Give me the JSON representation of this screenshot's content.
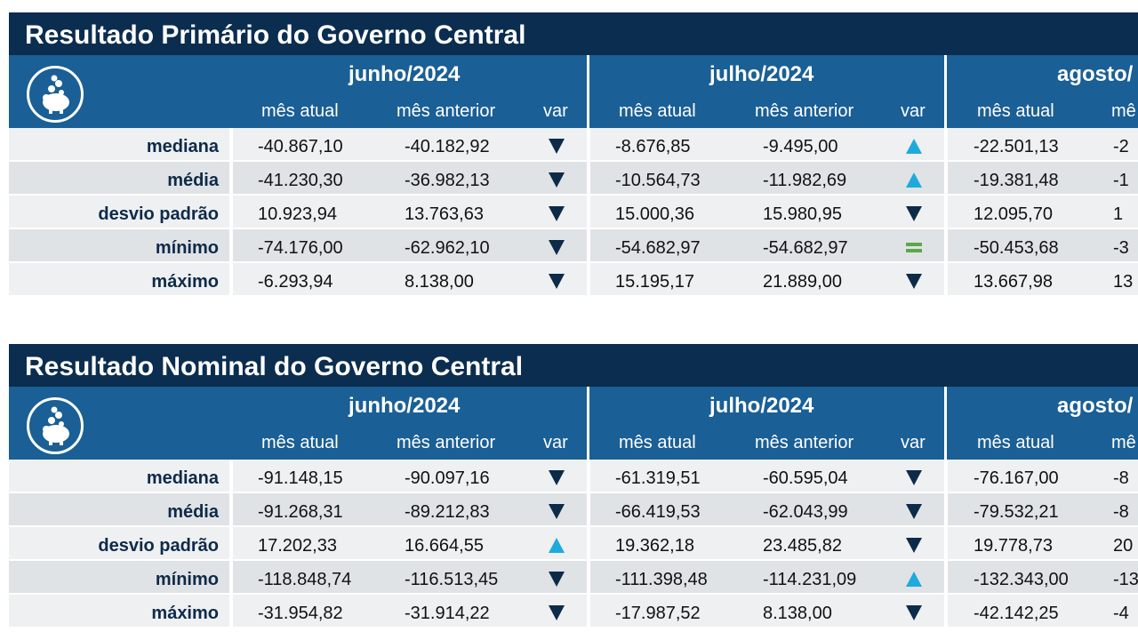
{
  "colors": {
    "title_bg": "#0b2d4f",
    "header_bg": "#1a5f95",
    "down": "#0d2b48",
    "up": "#1eaadc",
    "equal": "#5aa84a"
  },
  "logo_icon": "piggy-bank-icon",
  "var_icons": {
    "down": "triangle-down-icon",
    "up": "triangle-up-icon",
    "equal": "equal-icon"
  },
  "sections": [
    {
      "title": "Resultado Primário do Governo Central",
      "months": [
        "junho/2024",
        "julho/2024",
        "agosto/"
      ],
      "subheaders": [
        "mês atual",
        "mês anterior",
        "var",
        "mês atual",
        "mês anterior",
        "var",
        "mês atual",
        "mê"
      ],
      "rows": [
        {
          "label": "mediana",
          "cells": [
            "-40.867,10",
            "-40.182,92",
            "-8.676,85",
            "-9.495,00",
            "-22.501,13",
            "-2"
          ],
          "var": [
            "down",
            "up"
          ]
        },
        {
          "label": "média",
          "cells": [
            "-41.230,30",
            "-36.982,13",
            "-10.564,73",
            "-11.982,69",
            "-19.381,48",
            "-1"
          ],
          "var": [
            "down",
            "up"
          ]
        },
        {
          "label": "desvio padrão",
          "cells": [
            "10.923,94",
            "13.763,63",
            "15.000,36",
            "15.980,95",
            "12.095,70",
            "1"
          ],
          "var": [
            "down",
            "down"
          ]
        },
        {
          "label": "mínimo",
          "cells": [
            "-74.176,00",
            "-62.962,10",
            "-54.682,97",
            "-54.682,97",
            "-50.453,68",
            "-3"
          ],
          "var": [
            "down",
            "equal"
          ]
        },
        {
          "label": "máximo",
          "cells": [
            "-6.293,94",
            "8.138,00",
            "15.195,17",
            "21.889,00",
            "13.667,98",
            "13"
          ],
          "var": [
            "down",
            "down"
          ]
        }
      ]
    },
    {
      "title": "Resultado Nominal do Governo Central",
      "months": [
        "junho/2024",
        "julho/2024",
        "agosto/"
      ],
      "subheaders": [
        "mês atual",
        "mês anterior",
        "var",
        "mês atual",
        "mês anterior",
        "var",
        "mês atual",
        "mê"
      ],
      "rows": [
        {
          "label": "mediana",
          "cells": [
            "-91.148,15",
            "-90.097,16",
            "-61.319,51",
            "-60.595,04",
            "-76.167,00",
            "-8"
          ],
          "var": [
            "down",
            "down"
          ]
        },
        {
          "label": "média",
          "cells": [
            "-91.268,31",
            "-89.212,83",
            "-66.419,53",
            "-62.043,99",
            "-79.532,21",
            "-8"
          ],
          "var": [
            "down",
            "down"
          ]
        },
        {
          "label": "desvio padrão",
          "cells": [
            "17.202,33",
            "16.664,55",
            "19.362,18",
            "23.485,82",
            "19.778,73",
            "20"
          ],
          "var": [
            "up",
            "down"
          ]
        },
        {
          "label": "mínimo",
          "cells": [
            "-118.848,74",
            "-116.513,45",
            "-111.398,48",
            "-114.231,09",
            "-132.343,00",
            "-13"
          ],
          "var": [
            "down",
            "up"
          ]
        },
        {
          "label": "máximo",
          "cells": [
            "-31.954,82",
            "-31.914,22",
            "-17.987,52",
            "8.138,00",
            "-42.142,25",
            "-4"
          ],
          "var": [
            "down",
            "down"
          ]
        }
      ]
    }
  ]
}
